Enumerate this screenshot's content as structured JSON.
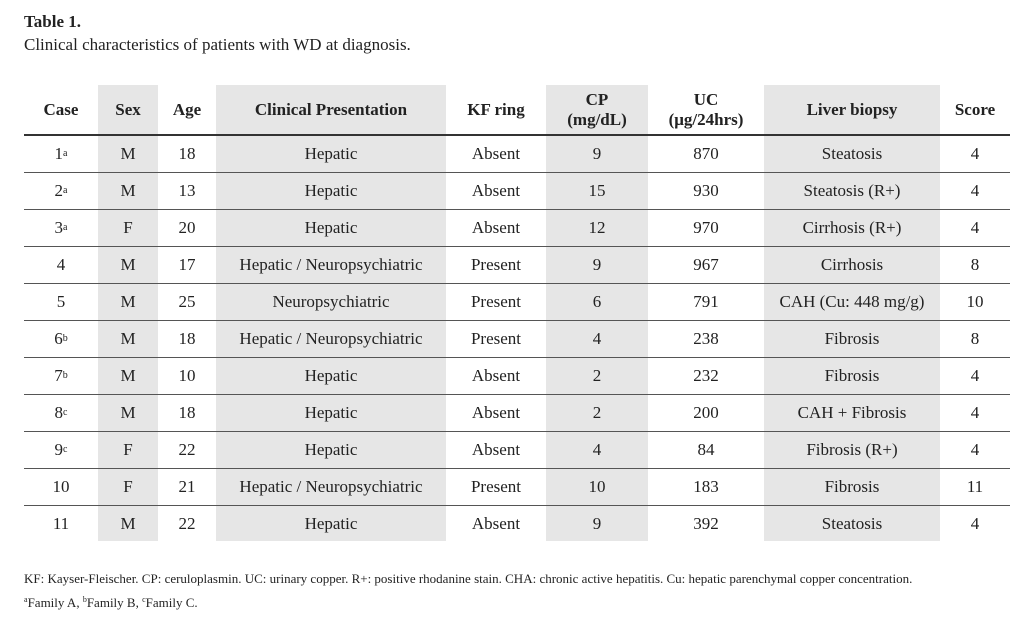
{
  "header": {
    "title": "Table 1.",
    "caption": "Clinical characteristics of patients with WD at diagnosis."
  },
  "table": {
    "columns": [
      [
        "Case"
      ],
      [
        "Sex"
      ],
      [
        "Age"
      ],
      [
        "Clinical Presentation"
      ],
      [
        "KF ring"
      ],
      [
        "CP",
        "(mg/dL)"
      ],
      [
        "UC",
        "(μg/24hrs)"
      ],
      [
        "Liver biopsy"
      ],
      [
        "Score"
      ]
    ],
    "rows": [
      {
        "case": "1",
        "mark": "a",
        "cells": [
          "M",
          "18",
          "Hepatic",
          "Absent",
          "9",
          "870",
          "Steatosis",
          "4"
        ]
      },
      {
        "case": "2",
        "mark": "a",
        "cells": [
          "M",
          "13",
          "Hepatic",
          "Absent",
          "15",
          "930",
          "Steatosis (R+)",
          "4"
        ]
      },
      {
        "case": "3",
        "mark": "a",
        "cells": [
          "F",
          "20",
          "Hepatic",
          "Absent",
          "12",
          "970",
          "Cirrhosis (R+)",
          "4"
        ]
      },
      {
        "case": "4",
        "cells": [
          "M",
          "17",
          "Hepatic / Neuropsychiatric",
          "Present",
          "9",
          "967",
          "Cirrhosis",
          "8"
        ]
      },
      {
        "case": "5",
        "cells": [
          "M",
          "25",
          "Neuropsychiatric",
          "Present",
          "6",
          "791",
          "CAH (Cu: 448 mg/g)",
          "10"
        ]
      },
      {
        "case": "6",
        "mark": "b",
        "cells": [
          "M",
          "18",
          "Hepatic / Neuropsychiatric",
          "Present",
          "4",
          "238",
          "Fibrosis",
          "8"
        ]
      },
      {
        "case": "7",
        "mark": "b",
        "cells": [
          "M",
          "10",
          "Hepatic",
          "Absent",
          "2",
          "232",
          "Fibrosis",
          "4"
        ]
      },
      {
        "case": "8",
        "mark": "c",
        "cells": [
          "M",
          "18",
          "Hepatic",
          "Absent",
          "2",
          "200",
          "CAH + Fibrosis",
          "4"
        ]
      },
      {
        "case": "9",
        "mark": "c",
        "cells": [
          "F",
          "22",
          "Hepatic",
          "Absent",
          "4",
          "84",
          "Fibrosis (R+)",
          "4"
        ]
      },
      {
        "case": "10",
        "cells": [
          "F",
          "21",
          "Hepatic / Neuropsychiatric",
          "Present",
          "10",
          "183",
          "Fibrosis",
          "11"
        ]
      },
      {
        "case": "11",
        "cells": [
          "M",
          "22",
          "Hepatic",
          "Absent",
          "9",
          "392",
          "Steatosis",
          "4"
        ]
      }
    ]
  },
  "footnotes": {
    "abbreviations": "KF: Kayser-Fleischer. CP: ceruloplasmin. UC: urinary copper. R+: positive rhodanine stain. CHA: chronic active hepatitis. Cu: hepatic parenchymal copper concentration.",
    "families": [
      {
        "mark": "a",
        "text": "Family A,"
      },
      {
        "mark": "b",
        "text": "Family B,"
      },
      {
        "mark": "c",
        "text": "Family C."
      }
    ]
  }
}
